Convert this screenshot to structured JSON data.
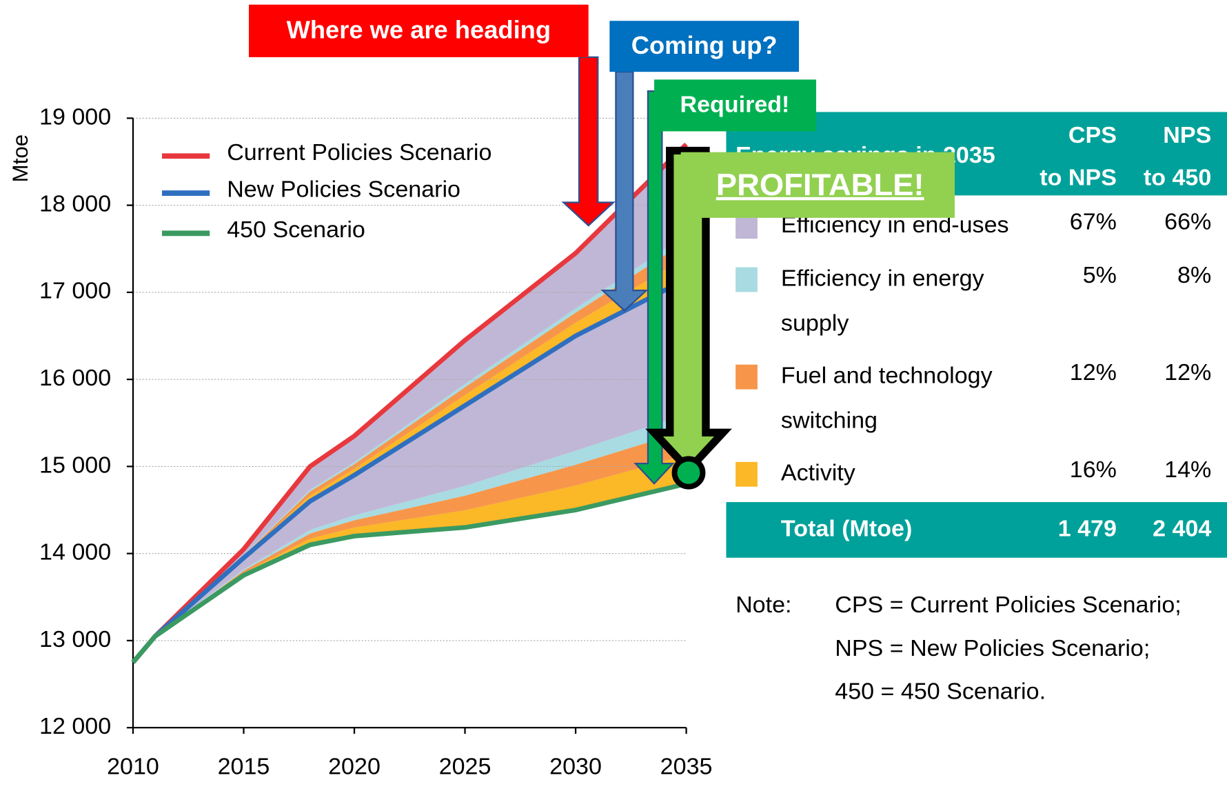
{
  "chart_data": {
    "type": "line",
    "ylabel": "Mtoe",
    "x": [
      2010,
      2011,
      2015,
      2018,
      2020,
      2025,
      2030,
      2035
    ],
    "series": [
      {
        "name": "Current Policies Scenario",
        "color": "#e8383d",
        "values": [
          12750,
          13050,
          14050,
          15000,
          15350,
          16450,
          17450,
          18700
        ]
      },
      {
        "name": "New Policies Scenario",
        "color": "#2f6fc0",
        "values": [
          12750,
          13050,
          13950,
          14600,
          14900,
          15700,
          16500,
          17150
        ]
      },
      {
        "name": "450 Scenario",
        "color": "#3a9a62",
        "values": [
          12750,
          13050,
          13750,
          14100,
          14200,
          14300,
          14500,
          14800
        ]
      }
    ],
    "xlim": [
      2010,
      2035
    ],
    "xticks": [
      2010,
      2015,
      2020,
      2025,
      2030,
      2035
    ],
    "ylim": [
      12000,
      19000
    ],
    "yticks": [
      {
        "value": 12000,
        "label": "12 000"
      },
      {
        "value": 13000,
        "label": "13 000"
      },
      {
        "value": 14000,
        "label": "14 000"
      },
      {
        "value": 15000,
        "label": "15 000"
      },
      {
        "value": 16000,
        "label": "16 000"
      },
      {
        "value": 17000,
        "label": "17 000"
      },
      {
        "value": 18000,
        "label": "18 000"
      },
      {
        "value": 19000,
        "label": "19 000"
      }
    ],
    "grid": true
  },
  "annotations": [
    "Where we are heading",
    "Coming up?",
    "Required!",
    "PROFITABLE!"
  ],
  "table": {
    "title": "Energy savings in 2035",
    "columns": [
      [
        "CPS",
        "to NPS"
      ],
      [
        "NPS",
        "to 450"
      ]
    ],
    "rows": [
      {
        "label": [
          "Activity"
        ],
        "color": "#fbb827",
        "values": [
          16,
          14
        ],
        "value_labels": [
          "16%",
          "14%"
        ]
      },
      {
        "label": [
          "Fuel and technology",
          "switching"
        ],
        "color": "#f7964a",
        "values": [
          12,
          12
        ],
        "value_labels": [
          "12%",
          "12%"
        ]
      },
      {
        "label": [
          "Efficiency in energy",
          "supply"
        ],
        "color": "#a8dbe2",
        "values": [
          5,
          8
        ],
        "value_labels": [
          "5%",
          "8%"
        ]
      },
      {
        "label": [
          "Efficiency in end-uses"
        ],
        "color": "#c0b7d6",
        "values": [
          67,
          66
        ],
        "value_labels": [
          "67%",
          "66%"
        ]
      }
    ],
    "total": {
      "label": "Total (Mtoe)",
      "values": [
        1479,
        2404
      ],
      "value_labels": [
        "1 479",
        "2 404"
      ]
    },
    "note": {
      "label": "Note:",
      "lines": [
        "CPS = Current Policies Scenario;",
        "NPS = New Policies Scenario;",
        "450 = 450 Scenario."
      ]
    }
  }
}
